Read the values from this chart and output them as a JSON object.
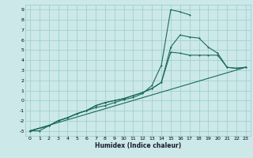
{
  "xlabel": "Humidex (Indice chaleur)",
  "bg_color": "#cce8e8",
  "grid_color": "#99cccc",
  "line_color": "#1a6b5a",
  "xlim": [
    -0.5,
    23.5
  ],
  "ylim": [
    -3.5,
    9.5
  ],
  "xticks": [
    0,
    1,
    2,
    3,
    4,
    5,
    6,
    7,
    8,
    9,
    10,
    11,
    12,
    13,
    14,
    15,
    16,
    17,
    18,
    19,
    20,
    21,
    22,
    23
  ],
  "yticks": [
    -3,
    -2,
    -1,
    0,
    1,
    2,
    3,
    4,
    5,
    6,
    7,
    8,
    9
  ],
  "series1": [
    [
      0,
      -3.0
    ],
    [
      1,
      -3.0
    ],
    [
      2,
      -2.5
    ],
    [
      3,
      -2.0
    ],
    [
      4,
      -1.7
    ],
    [
      5,
      -1.3
    ],
    [
      6,
      -1.0
    ],
    [
      7,
      -0.7
    ],
    [
      8,
      -0.5
    ],
    [
      9,
      -0.2
    ],
    [
      10,
      0.1
    ],
    [
      11,
      0.3
    ],
    [
      12,
      0.7
    ],
    [
      13,
      1.5
    ],
    [
      14,
      3.5
    ],
    [
      15,
      9.0
    ],
    [
      16,
      8.8
    ],
    [
      17,
      8.5
    ]
  ],
  "series2": [
    [
      0,
      -3.0
    ],
    [
      23,
      3.3
    ]
  ],
  "series3": [
    [
      0,
      -3.0
    ],
    [
      2,
      -2.5
    ],
    [
      3,
      -2.0
    ],
    [
      4,
      -1.7
    ],
    [
      5,
      -1.3
    ],
    [
      6,
      -1.0
    ],
    [
      7,
      -0.5
    ],
    [
      8,
      -0.2
    ],
    [
      9,
      0.0
    ],
    [
      10,
      0.2
    ],
    [
      11,
      0.5
    ],
    [
      12,
      0.8
    ],
    [
      13,
      1.2
    ],
    [
      14,
      1.8
    ],
    [
      15,
      5.3
    ],
    [
      16,
      6.5
    ],
    [
      17,
      6.3
    ],
    [
      18,
      6.2
    ],
    [
      19,
      5.3
    ],
    [
      20,
      4.7
    ],
    [
      21,
      3.3
    ],
    [
      22,
      3.2
    ],
    [
      23,
      3.3
    ]
  ],
  "series4": [
    [
      0,
      -3.0
    ],
    [
      2,
      -2.5
    ],
    [
      3,
      -2.0
    ],
    [
      4,
      -1.7
    ],
    [
      5,
      -1.3
    ],
    [
      6,
      -1.0
    ],
    [
      7,
      -0.5
    ],
    [
      8,
      -0.2
    ],
    [
      9,
      0.0
    ],
    [
      10,
      0.2
    ],
    [
      11,
      0.5
    ],
    [
      12,
      0.8
    ],
    [
      13,
      1.2
    ],
    [
      14,
      1.8
    ],
    [
      15,
      4.8
    ],
    [
      16,
      4.7
    ],
    [
      17,
      4.5
    ],
    [
      18,
      4.5
    ],
    [
      19,
      4.5
    ],
    [
      20,
      4.5
    ],
    [
      21,
      3.3
    ],
    [
      22,
      3.2
    ],
    [
      23,
      3.3
    ]
  ]
}
